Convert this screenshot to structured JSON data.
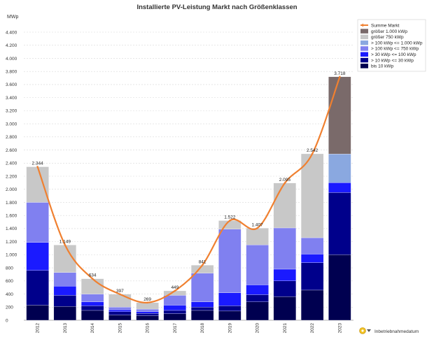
{
  "chart_data": {
    "type": "bar",
    "stacked": true,
    "title": "Installierte PV-Leistung Markt nach Größenklassen",
    "ylabel": "MWp",
    "xlabel": "",
    "categories": [
      "2012",
      "2013",
      "2014",
      "2015",
      "2016",
      "2017",
      "2018",
      "2019",
      "2020",
      "2021",
      "2022",
      "2023"
    ],
    "ylim": [
      0,
      4400
    ],
    "yticks": [
      0,
      200,
      400,
      600,
      800,
      1000,
      1200,
      1400,
      1600,
      1800,
      2000,
      2200,
      2400,
      2600,
      2800,
      3000,
      3200,
      3400,
      3600,
      3800,
      4000,
      4200,
      4400
    ],
    "ytick_labels": [
      "0",
      "200",
      "400",
      "600",
      "800",
      "1.000",
      "1.200",
      "1.400",
      "1.600",
      "1.800",
      "2.000",
      "2.200",
      "2.400",
      "2.600",
      "2.800",
      "3.000",
      "3.200",
      "3.400",
      "3.600",
      "3.800",
      "4.000",
      "4.200",
      "4.400"
    ],
    "grid": true,
    "legend_position": "top-right",
    "series": [
      {
        "name": "bis 10 kWp",
        "color": "#000050",
        "values": [
          230,
          210,
          150,
          80,
          70,
          100,
          150,
          140,
          280,
          360,
          460,
          1000
        ]
      },
      {
        "name": "> 10 kWp <= 30 kWp",
        "color": "#00008b",
        "values": [
          530,
          170,
          70,
          50,
          35,
          50,
          50,
          80,
          110,
          240,
          420,
          950
        ]
      },
      {
        "name": "> 30 kWp <= 100 kWp",
        "color": "#1a1aff",
        "values": [
          430,
          140,
          60,
          30,
          25,
          80,
          80,
          200,
          150,
          180,
          130,
          150
        ]
      },
      {
        "name": "> 100 kWp <= 750 kWp",
        "color": "#8080f0",
        "values": [
          610,
          210,
          120,
          40,
          40,
          150,
          440,
          970,
          610,
          630,
          250,
          0
        ]
      },
      {
        "name": "> 100 kWp <= 1.000 kWp",
        "color": "#8aa8e0",
        "values": [
          0,
          0,
          0,
          0,
          0,
          0,
          0,
          0,
          0,
          0,
          0,
          440
        ]
      },
      {
        "name": "größer 750 kWp",
        "color": "#c8c8c8",
        "values": [
          544,
          419,
          234,
          197,
          99,
          69,
          121,
          132,
          257,
          685,
          1282,
          0
        ]
      },
      {
        "name": "größer 1.000 kWp",
        "color": "#7a6a6a",
        "values": [
          0,
          0,
          0,
          0,
          0,
          0,
          0,
          0,
          0,
          0,
          0,
          1178
        ]
      }
    ],
    "line": {
      "name": "Summe Markt",
      "color": "#f08030",
      "values": [
        2344,
        1149,
        634,
        397,
        269,
        449,
        841,
        1522,
        1407,
        2095,
        2542,
        3718
      ],
      "labels": [
        "2.344",
        "1.149",
        "634",
        "397",
        "269",
        "449",
        "841",
        "1.522",
        "1.407",
        "2.095",
        "2.542",
        "3.718"
      ]
    },
    "legend_order": [
      "Summe Markt",
      "größer 1.000 kWp",
      "größer 750 kWp",
      "> 100 kWp <= 1.000 kWp",
      "> 100 kWp <= 750 kWp",
      "> 30 kWp <= 100 kWp",
      "> 10 kWp <= 30 kWp",
      "bis 10 kWp"
    ]
  },
  "footer": {
    "icon": "filter-dropdown-icon",
    "label": "Inbetriebnahmedatum"
  }
}
